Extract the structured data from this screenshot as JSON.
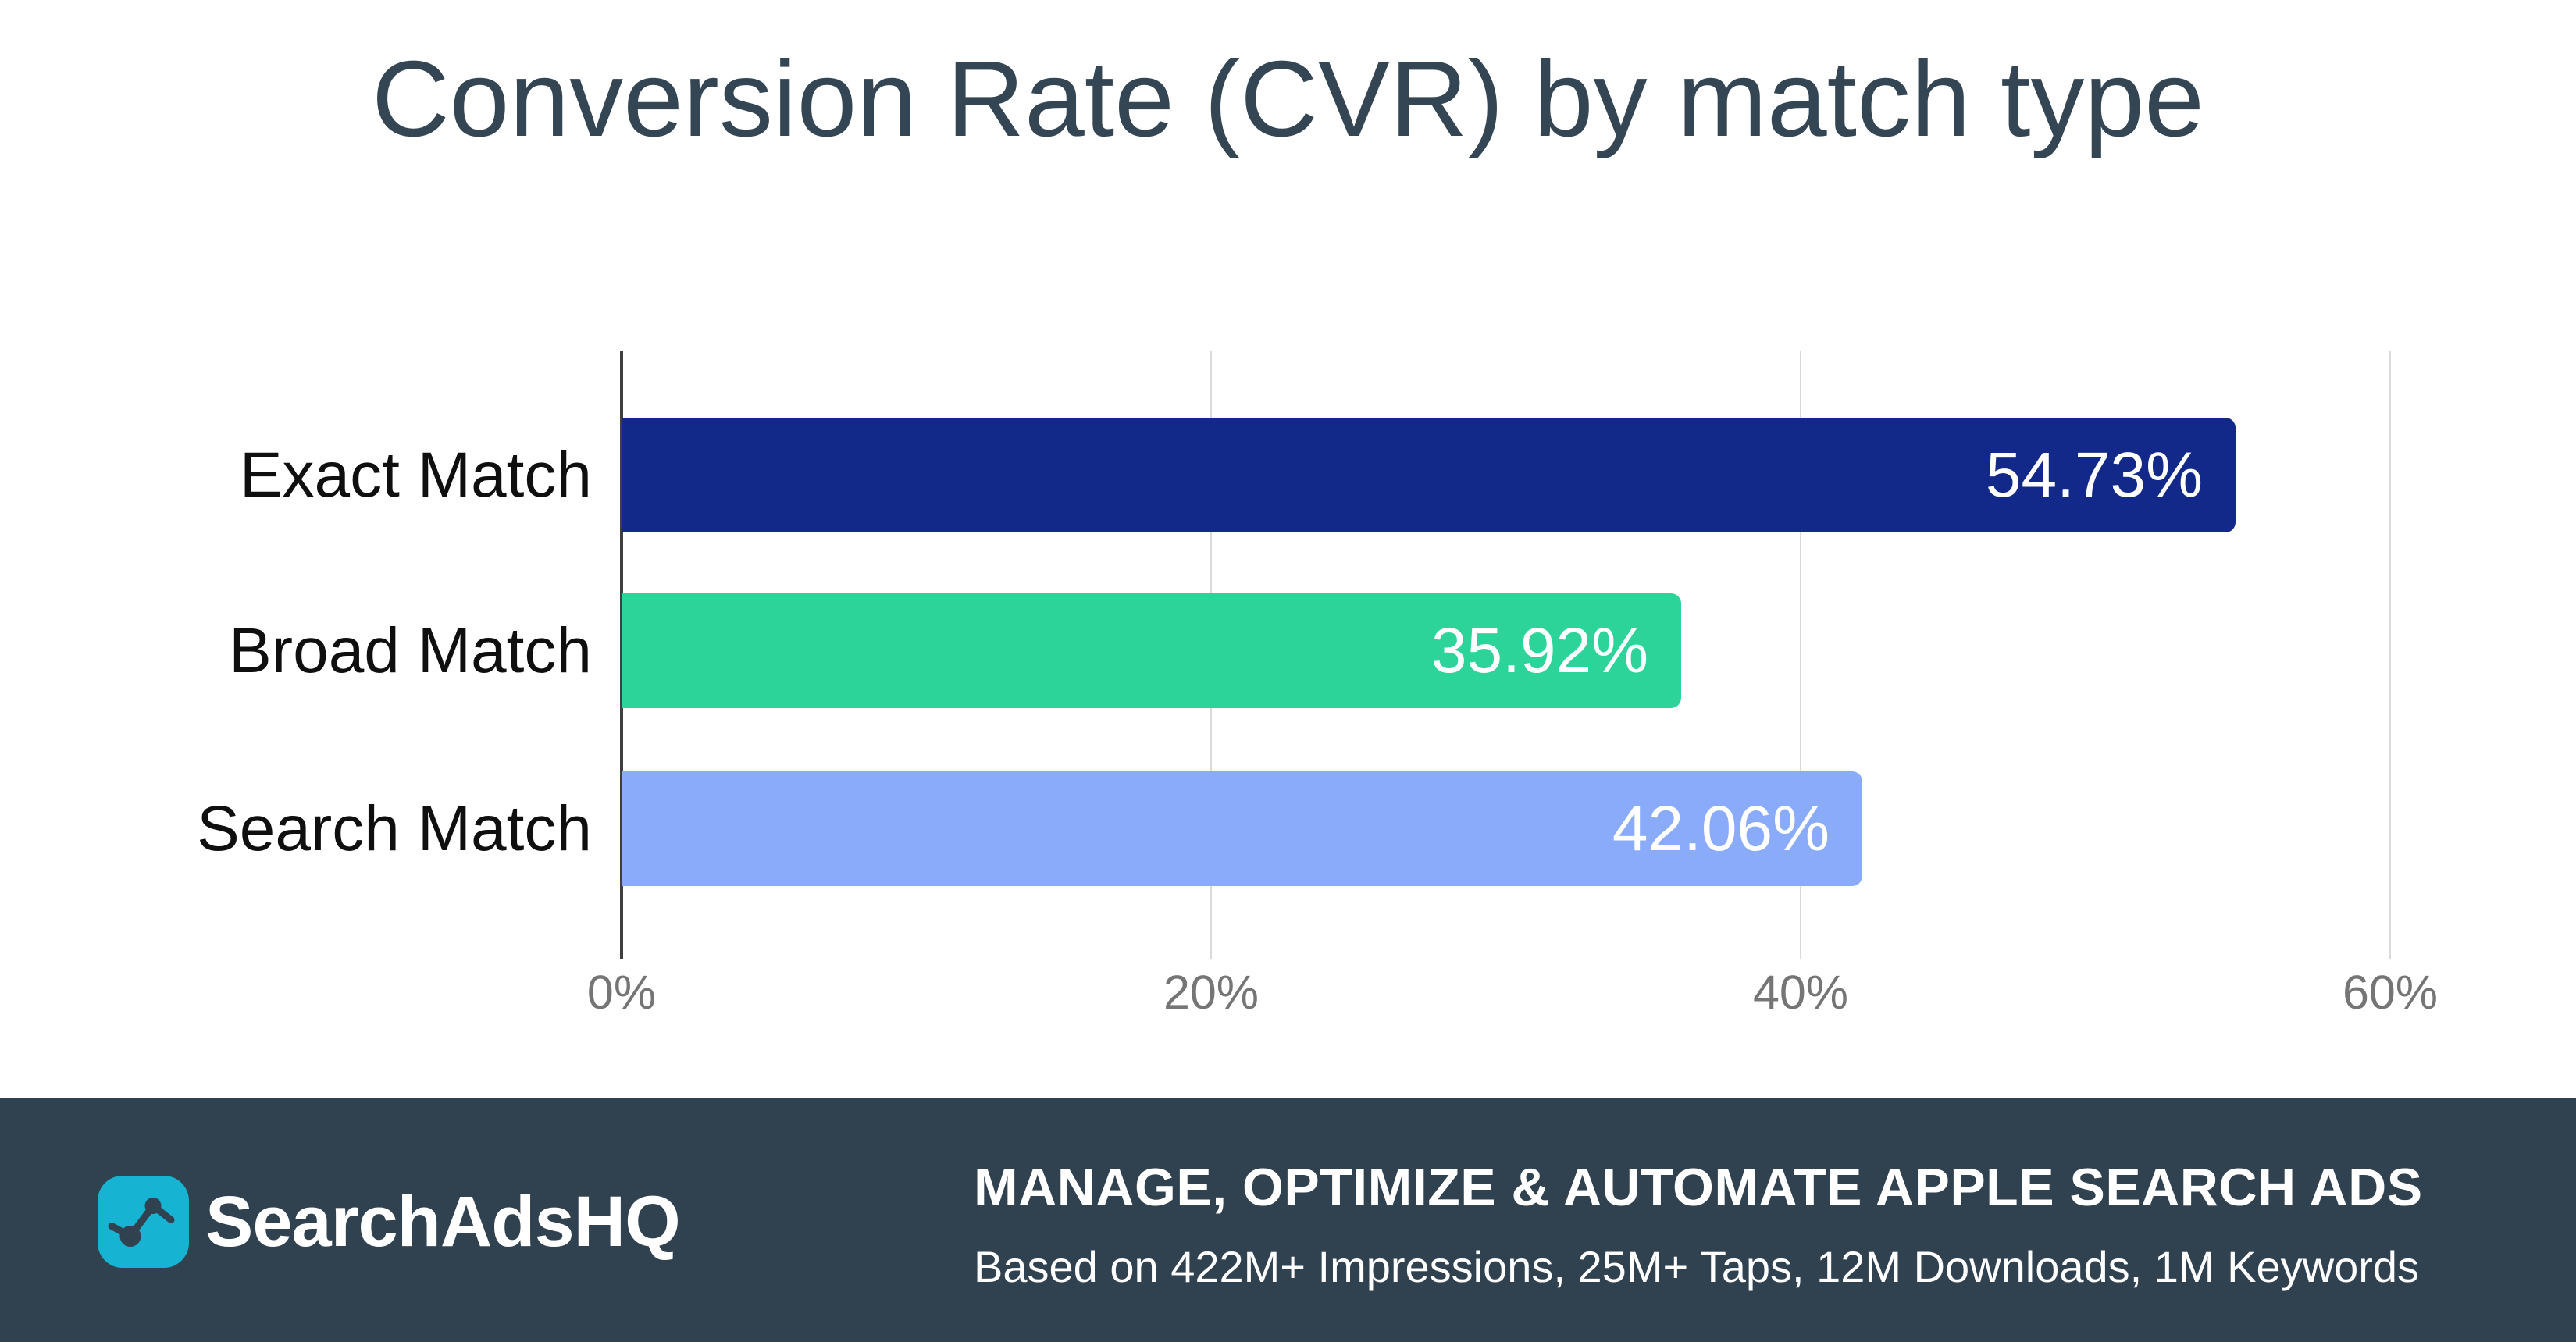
{
  "title": "Conversion Rate (CVR) by match type",
  "chart_data": {
    "type": "bar",
    "orientation": "horizontal",
    "title": "Conversion Rate (CVR) by match type",
    "categories": [
      "Exact Match",
      "Broad Match",
      "Search Match"
    ],
    "values": [
      54.73,
      35.92,
      42.06
    ],
    "value_labels": [
      "54.73%",
      "35.92%",
      "42.06%"
    ],
    "bar_colors": [
      "#13298a",
      "#2dd49a",
      "#89abfa"
    ],
    "value_label_color": "#ffffff",
    "xlabel": "",
    "ylabel": "",
    "xlim": [
      0,
      63
    ],
    "tick_values": [
      0,
      20,
      40,
      60
    ],
    "tick_labels": [
      "0%",
      "20%",
      "40%",
      "60%"
    ],
    "grid": true,
    "gridline_color": "#d9d9d9",
    "axis_color": "#3f3f3f",
    "tick_label_color": "#757575",
    "category_label_color": "#0f0f0f",
    "legend": "none",
    "value_labels_position": "inside-end"
  },
  "footer": {
    "background_color": "#30414f",
    "brand_name": "SearchAdsHQ",
    "logo_icon": "line-chart-icon",
    "logo_background_color": "#16b3d2",
    "heading": "MANAGE, OPTIMIZE & AUTOMATE APPLE SEARCH ADS",
    "subtext": "Based on 422M+ Impressions, 25M+ Taps, 12M Downloads, 1M Keywords",
    "text_color": "#ffffff"
  },
  "page": {
    "background_color": "#ffffff",
    "title_color": "#344653"
  }
}
